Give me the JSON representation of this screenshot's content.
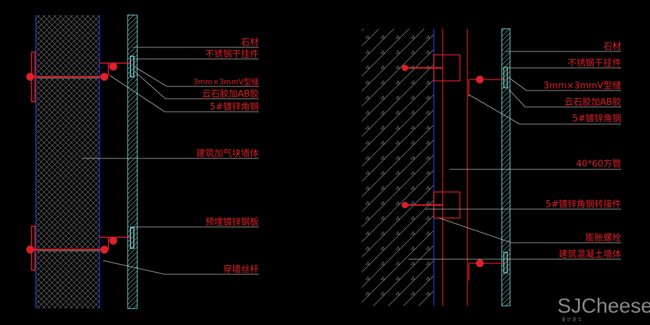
{
  "left_detail": {
    "labels": [
      "石材",
      "不锈钢干挂件",
      "3mm×3mmV型缝",
      "云石胶加AB胶",
      "5#镀锌角钢",
      "建筑加气块墙体",
      "预埋镀锌钢板",
      "穿墙丝杆"
    ]
  },
  "right_detail": {
    "labels": [
      "石材",
      "不锈钢干挂件",
      "3mm×3mmV型缝",
      "云石胶加AB胶",
      "5#镀锌角钢",
      "40*60方管",
      "5#镀锌角钢转接件",
      "膨胀螺栓",
      "建筑混凝土墙体"
    ]
  },
  "watermark": {
    "brand": "SJCheese",
    "sub": "设 计 芝 士"
  },
  "colors": {
    "background": "#000000",
    "text": "#e0202a",
    "leader": "#c8c8c8",
    "stone": "#7fd6d6",
    "wall_edge": "#2030c0",
    "steel": "#e0202a"
  }
}
